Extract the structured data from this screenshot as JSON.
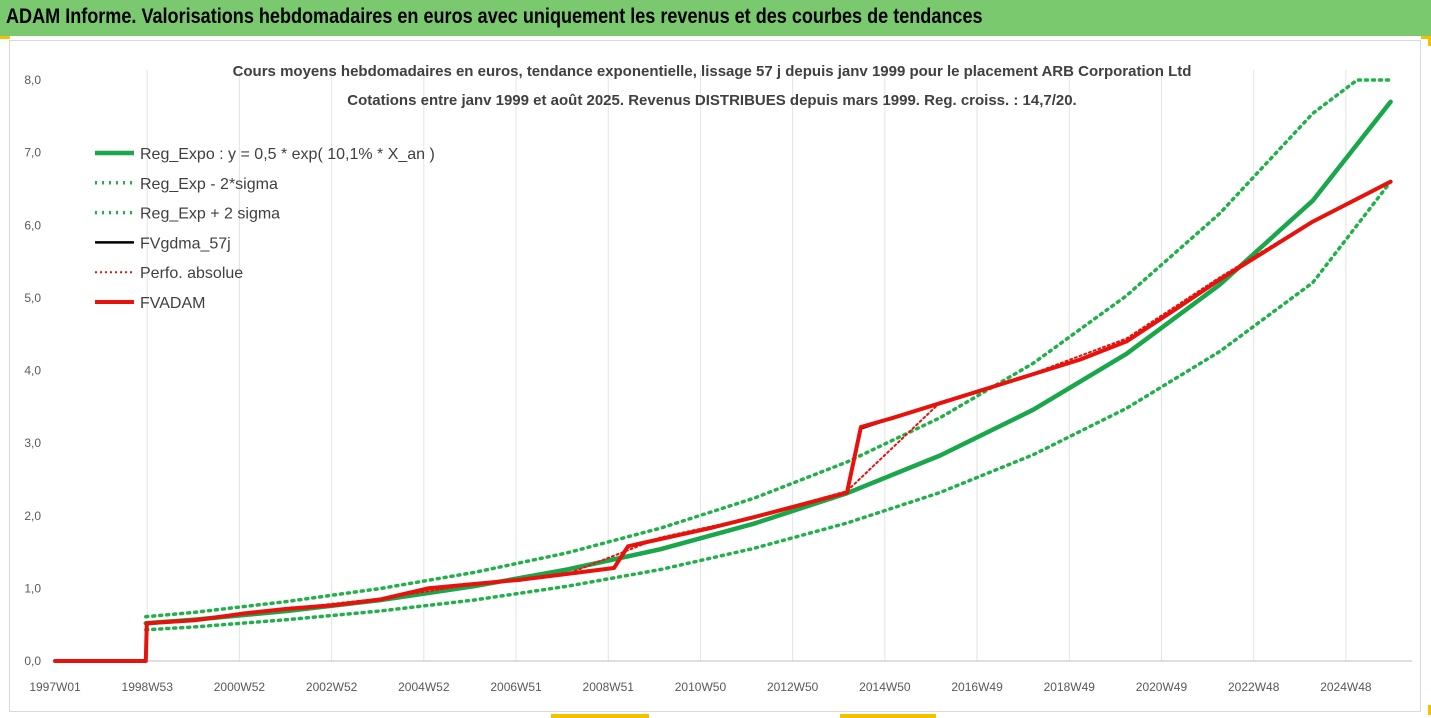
{
  "header": {
    "title": "ADAM Informe. Valorisations hebdomadaires en euros avec uniquement les revenus et des courbes de tendances"
  },
  "colors": {
    "header_bg": "#7bc96f",
    "trend": "#1aa64a",
    "band": "#22b04b",
    "fv": "#000000",
    "adam": "#e8120c",
    "perf": "#e8120c"
  },
  "chart_data": {
    "type": "line",
    "title_line1": "Cours moyens hebdomadaires en euros, tendance exponentielle, lissage 57 j depuis janv 1999 pour le placement ARB Corporation Ltd",
    "title_line2": "Cotations entre janv 1999 et août 2025. Revenus DISTRIBUES depuis mars 1999. Reg. croiss. : 14,7/20.",
    "x_tick_labels": [
      "1997W01",
      "1998W53",
      "2000W52",
      "2002W52",
      "2004W52",
      "2006W51",
      "2008W51",
      "2010W50",
      "2012W50",
      "2014W50",
      "2016W49",
      "2018W49",
      "2020W49",
      "2022W48",
      "2024W48"
    ],
    "y_tick_labels": [
      "0,0",
      "1,0",
      "2,0",
      "3,0",
      "4,0",
      "5,0",
      "6,0",
      "7,0",
      "8,0"
    ],
    "ylim": [
      0,
      8
    ],
    "xlim": [
      1997.0,
      2025.7
    ],
    "grid": {
      "vertical": true,
      "horizontal": false
    },
    "legend_position": "top-left",
    "series": [
      {
        "name": "Reg_Expo : y = 0,5 * exp( 10,1% *  X_an )",
        "style": "trend",
        "x": [
          1998.95,
          2000,
          2002,
          2004,
          2006,
          2008,
          2010,
          2012,
          2014,
          2016,
          2018,
          2020,
          2022,
          2024,
          2025.67
        ],
        "y": [
          0.52,
          0.57,
          0.69,
          0.84,
          1.03,
          1.26,
          1.54,
          1.89,
          2.31,
          2.83,
          3.46,
          4.23,
          5.18,
          6.34,
          7.7
        ]
      },
      {
        "name": "Reg_Exp - 2*sigma",
        "style": "band",
        "x": [
          1998.95,
          2000,
          2002,
          2004,
          2006,
          2008,
          2010,
          2012,
          2014,
          2016,
          2018,
          2020,
          2022,
          2024,
          2025.67
        ],
        "y": [
          0.43,
          0.47,
          0.57,
          0.69,
          0.84,
          1.03,
          1.26,
          1.55,
          1.9,
          2.32,
          2.84,
          3.48,
          4.26,
          5.21,
          6.6
        ]
      },
      {
        "name": "Reg_Exp + 2 sigma",
        "style": "band",
        "x": [
          1998.95,
          2000,
          2002,
          2004,
          2006,
          2008,
          2010,
          2012,
          2014,
          2016,
          2018,
          2020,
          2022,
          2024,
          2024.95,
          2025.67
        ],
        "y": [
          0.61,
          0.67,
          0.82,
          1.0,
          1.22,
          1.49,
          1.83,
          2.24,
          2.74,
          3.35,
          4.1,
          5.03,
          6.16,
          7.54,
          8.0,
          8.0
        ]
      },
      {
        "name": "FVgdma_57j",
        "style": "fv",
        "x": [
          1997.0,
          1998.95,
          1998.97,
          2000,
          2001,
          2002,
          2003,
          2004,
          2005,
          2006,
          2007,
          2008,
          2009,
          2009.3,
          2010,
          2011,
          2012,
          2013,
          2014,
          2014.3,
          2015,
          2016,
          2017,
          2018,
          2019,
          2020,
          2021,
          2022,
          2023,
          2024,
          2025.67
        ],
        "y": [
          0.0,
          0.0,
          0.52,
          0.56,
          0.65,
          0.72,
          0.77,
          0.85,
          1.0,
          1.06,
          1.12,
          1.2,
          1.28,
          1.58,
          1.68,
          1.82,
          1.98,
          2.15,
          2.32,
          3.2,
          3.35,
          3.55,
          3.75,
          3.95,
          4.15,
          4.4,
          4.82,
          5.25,
          5.65,
          6.05,
          6.6
        ]
      },
      {
        "name": "Perfo. absolue",
        "style": "perf",
        "x": [
          1997.0,
          1998.95,
          1998.97,
          2000,
          2002,
          2004,
          2006,
          2008,
          2010,
          2012,
          2014,
          2016,
          2018,
          2020,
          2022,
          2024,
          2025.67
        ],
        "y": [
          0.0,
          0.0,
          0.52,
          0.57,
          0.72,
          0.86,
          1.06,
          1.2,
          1.7,
          1.98,
          2.34,
          3.56,
          3.96,
          4.44,
          5.28,
          6.06,
          6.6
        ]
      },
      {
        "name": "FVADAM",
        "style": "adam",
        "x": [
          1997.0,
          1998.95,
          1998.97,
          2000,
          2001,
          2002,
          2003,
          2004,
          2005,
          2006,
          2007,
          2008,
          2009,
          2009.3,
          2010,
          2011,
          2012,
          2013,
          2014,
          2014.3,
          2015,
          2016,
          2017,
          2018,
          2019,
          2020,
          2021,
          2022,
          2023,
          2024,
          2025.67
        ],
        "y": [
          0.0,
          0.0,
          0.52,
          0.56,
          0.65,
          0.72,
          0.77,
          0.85,
          1.0,
          1.06,
          1.12,
          1.2,
          1.28,
          1.58,
          1.68,
          1.82,
          1.98,
          2.15,
          2.32,
          3.22,
          3.35,
          3.55,
          3.75,
          3.95,
          4.15,
          4.4,
          4.82,
          5.25,
          5.65,
          6.05,
          6.6
        ]
      }
    ]
  }
}
